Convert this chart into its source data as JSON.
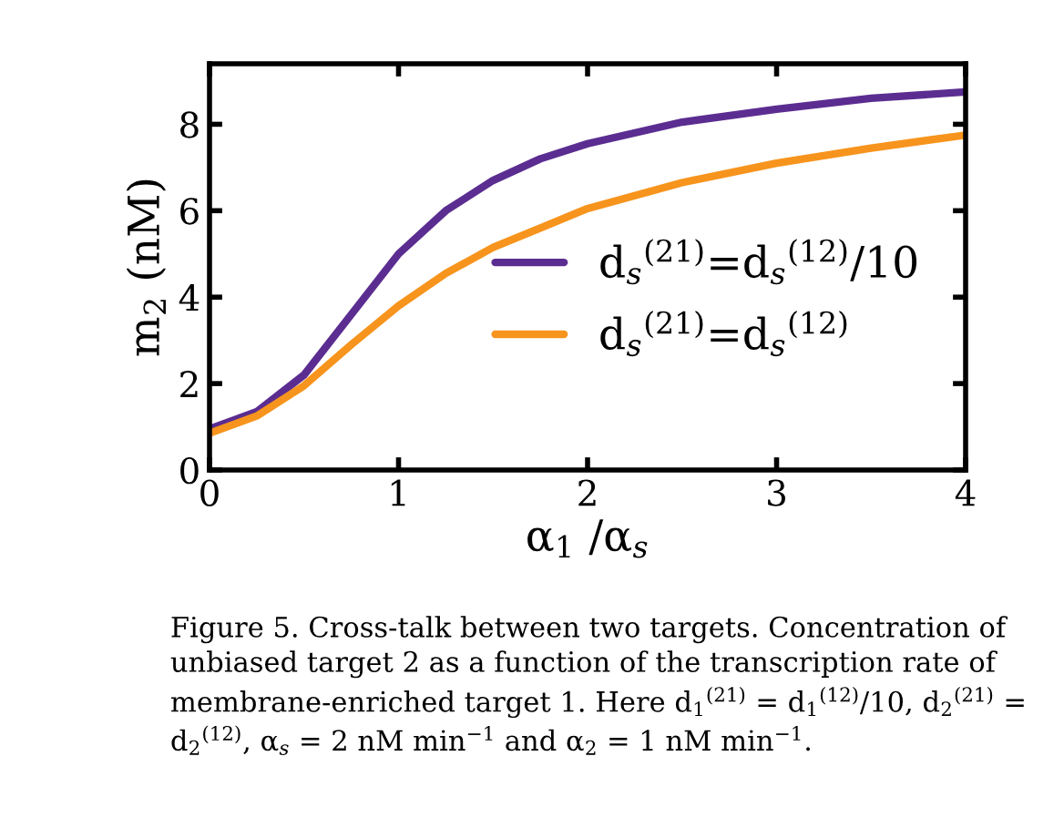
{
  "chart_data": {
    "type": "line",
    "xlabel": "α$_{1}$ /α$_{s}$",
    "ylabel": "m$_{2}$ (nM)",
    "x": [
      0,
      0.25,
      0.5,
      0.75,
      1.0,
      1.25,
      1.5,
      1.75,
      2.0,
      2.5,
      3.0,
      3.5,
      4.0
    ],
    "series": [
      {
        "name": "d$_{s}$$^{(21)}$=d$_{s}$$^{(12)}$/10",
        "color": "#5b2d91",
        "values": [
          0.95,
          1.35,
          2.2,
          3.6,
          5.0,
          6.0,
          6.7,
          7.2,
          7.55,
          8.05,
          8.35,
          8.6,
          8.75
        ]
      },
      {
        "name": "d$_{s}$$^{(21)}$=d$_{s}$$^{(12)}$",
        "color": "#f7941d",
        "values": [
          0.85,
          1.25,
          1.95,
          2.9,
          3.8,
          4.55,
          5.15,
          5.6,
          6.05,
          6.65,
          7.1,
          7.45,
          7.75
        ]
      }
    ],
    "xlim": [
      0,
      4
    ],
    "ylim": [
      0,
      9.4
    ],
    "xticks": [
      0,
      1,
      2,
      3,
      4
    ],
    "yticks": [
      0,
      2,
      4,
      6,
      8
    ],
    "grid": false,
    "legend": "right",
    "marker": "none",
    "line_style": "solid",
    "annotations": [
      "Figure 5. Cross-talk between two targets. Concentration of unbiased target 2 as a function of the transcription rate of membrane-enriched target 1. Here d$_{1}$$^{(21)}$ = d$_{1}$$^{(12)}$/10, d$_{2}$$^{(21)}$ = d$_{2}$$^{(12)}$, α$_{s}$ = 2 nM min$^{−1}$ and α$_{2}$ = 1 nM min$^{−1}$."
    ]
  }
}
